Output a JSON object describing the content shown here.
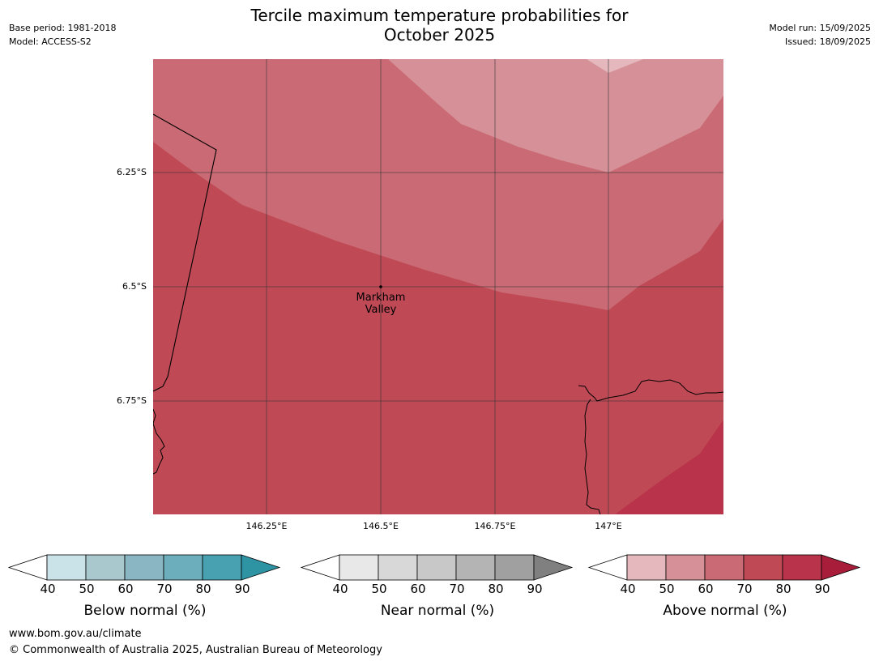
{
  "title": {
    "line1": "Tercile maximum temperature probabilities for",
    "line2": "October 2025"
  },
  "meta_left": {
    "base_period": "Base period: 1981-2018",
    "model": "Model: ACCESS-S2"
  },
  "meta_right": {
    "model_run": "Model run: 15/09/2025",
    "issued": "Issued: 18/09/2025"
  },
  "map": {
    "lat_labels": [
      "6.25°S",
      "6.5°S",
      "6.75°S"
    ],
    "lon_labels": [
      "146.25°E",
      "146.5°E",
      "146.75°E",
      "147°E"
    ],
    "place": {
      "name_line1": "Markham",
      "name_line2": "Valley"
    }
  },
  "colorbars": {
    "ticks": [
      "40",
      "50",
      "60",
      "70",
      "80",
      "90"
    ],
    "below": {
      "label": "Below normal (%)",
      "colors": [
        "#cae3e8",
        "#a9c8cd",
        "#8ab6c3",
        "#6daebd",
        "#48a1b0"
      ],
      "extend_color": "#2e94a4"
    },
    "near": {
      "label": "Near normal (%)",
      "colors": [
        "#e8e8e8",
        "#d8d8d8",
        "#c8c8c8",
        "#b4b4b4",
        "#a0a0a0"
      ],
      "extend_color": "#808080"
    },
    "above": {
      "label": "Above normal (%)",
      "colors": [
        "#e4b8bd",
        "#d69198",
        "#ca6a74",
        "#bf4a55",
        "#b9344a"
      ],
      "extend_color": "#a81e3a"
    }
  },
  "footer": {
    "url": "www.bom.gov.au/climate",
    "copyright": "© Commonwealth of Australia 2025, Australian Bureau of Meteorology"
  }
}
